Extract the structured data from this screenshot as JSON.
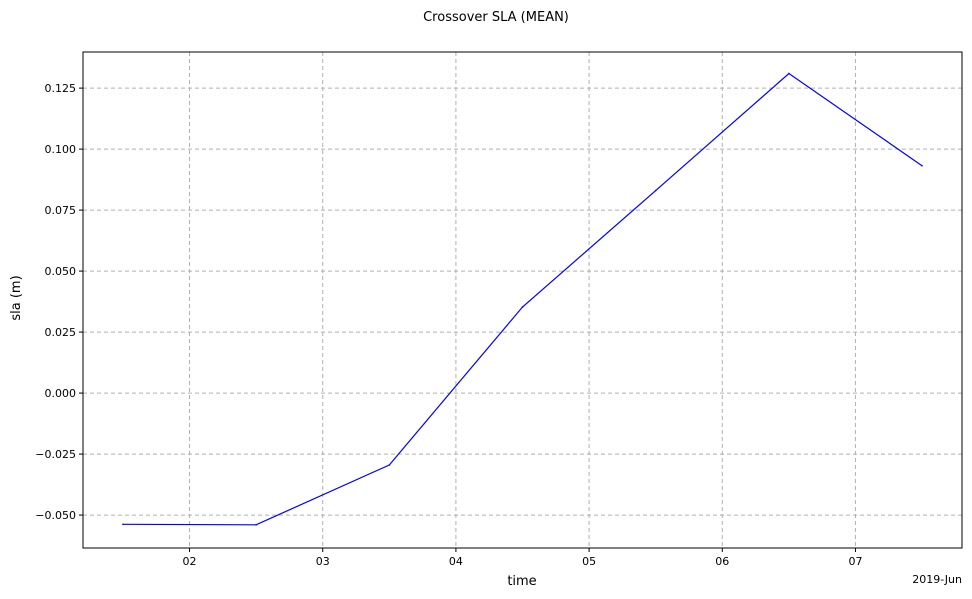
{
  "chart_data": {
    "type": "line",
    "title": "Crossover SLA (MEAN)",
    "xlabel": "time",
    "ylabel": "sla (m)",
    "x_offset_label": "2019-Jun",
    "x_ticks": [
      {
        "value": 2,
        "label": "02"
      },
      {
        "value": 3,
        "label": "03"
      },
      {
        "value": 4,
        "label": "04"
      },
      {
        "value": 5,
        "label": "05"
      },
      {
        "value": 6,
        "label": "06"
      },
      {
        "value": 7,
        "label": "07"
      }
    ],
    "y_ticks": [
      {
        "value": -0.05,
        "label": "−0.050"
      },
      {
        "value": -0.025,
        "label": "−0.025"
      },
      {
        "value": 0.0,
        "label": "0.000"
      },
      {
        "value": 0.025,
        "label": "0.025"
      },
      {
        "value": 0.05,
        "label": "0.050"
      },
      {
        "value": 0.075,
        "label": "0.075"
      },
      {
        "value": 0.1,
        "label": "0.100"
      },
      {
        "value": 0.125,
        "label": "0.125"
      }
    ],
    "xlim": [
      1.2,
      7.8
    ],
    "ylim": [
      -0.0635,
      0.1398
    ],
    "grid": true,
    "series": [
      {
        "color": "#0000ff",
        "x": [
          1.5,
          2.5,
          3.5,
          4.5,
          5.5,
          6.5,
          7.5
        ],
        "y": [
          -0.0538,
          -0.054,
          -0.0295,
          0.0353,
          0.083,
          0.131,
          0.0932
        ]
      }
    ]
  }
}
